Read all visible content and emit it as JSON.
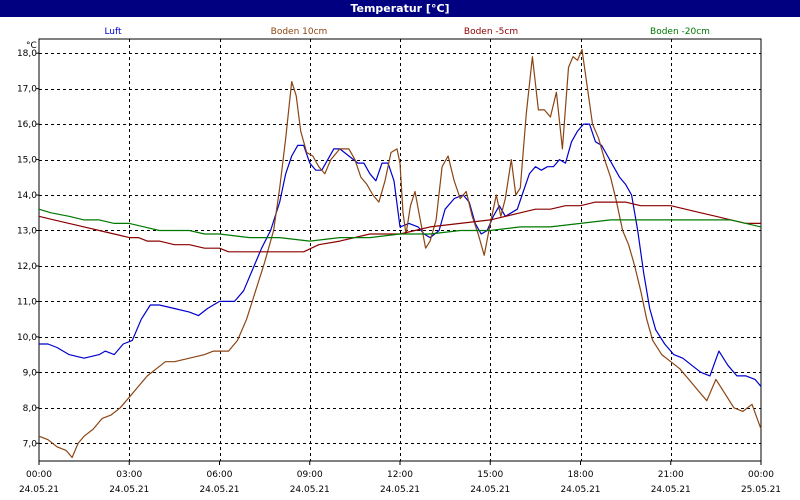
{
  "title": "Temperatur [°C]",
  "chart_data": {
    "type": "line",
    "title": "Temperatur [°C]",
    "y_unit": "°C",
    "ylim": [
      6.5,
      18.4
    ],
    "y_ticks": [
      7.0,
      8.0,
      9.0,
      10.0,
      11.0,
      12.0,
      13.0,
      14.0,
      15.0,
      16.0,
      17.0,
      18.0
    ],
    "y_tick_labels": [
      "7,0",
      "8,0",
      "9,0",
      "10,0",
      "11,0",
      "12,0",
      "13,0",
      "14,0",
      "15,0",
      "16,0",
      "17,0",
      "18,0"
    ],
    "xlim": [
      0,
      24
    ],
    "x_ticks": [
      0,
      3,
      6,
      9,
      12,
      15,
      18,
      21,
      24
    ],
    "x_tick_labels": [
      {
        "time": "00:00",
        "date": "24.05.21"
      },
      {
        "time": "03:00",
        "date": "24.05.21"
      },
      {
        "time": "06:00",
        "date": "24.05.21"
      },
      {
        "time": "09:00",
        "date": "24.05.21"
      },
      {
        "time": "12:00",
        "date": "24.05.21"
      },
      {
        "time": "15:00",
        "date": "24.05.21"
      },
      {
        "time": "18:00",
        "date": "24.05.21"
      },
      {
        "time": "21:00",
        "date": "24.05.21"
      },
      {
        "time": "00:00",
        "date": "25.05.21"
      }
    ],
    "grid": true,
    "legend_position": "top",
    "series": [
      {
        "name": "Luft",
        "color": "#0000cc",
        "points": [
          [
            0,
            9.8
          ],
          [
            0.3,
            9.8
          ],
          [
            0.6,
            9.7
          ],
          [
            1.0,
            9.5
          ],
          [
            1.5,
            9.4
          ],
          [
            2.0,
            9.5
          ],
          [
            2.2,
            9.6
          ],
          [
            2.5,
            9.5
          ],
          [
            2.8,
            9.8
          ],
          [
            3.1,
            9.9
          ],
          [
            3.4,
            10.5
          ],
          [
            3.7,
            10.9
          ],
          [
            4.0,
            10.9
          ],
          [
            4.5,
            10.8
          ],
          [
            5.0,
            10.7
          ],
          [
            5.3,
            10.6
          ],
          [
            5.6,
            10.8
          ],
          [
            6.0,
            11.0
          ],
          [
            6.5,
            11.0
          ],
          [
            6.8,
            11.3
          ],
          [
            7.1,
            11.9
          ],
          [
            7.4,
            12.5
          ],
          [
            7.7,
            13.0
          ],
          [
            8.0,
            13.8
          ],
          [
            8.2,
            14.6
          ],
          [
            8.4,
            15.1
          ],
          [
            8.6,
            15.4
          ],
          [
            8.8,
            15.4
          ],
          [
            9.0,
            14.9
          ],
          [
            9.2,
            14.7
          ],
          [
            9.4,
            14.7
          ],
          [
            9.6,
            15.0
          ],
          [
            9.8,
            15.3
          ],
          [
            10.0,
            15.3
          ],
          [
            10.3,
            15.1
          ],
          [
            10.6,
            14.9
          ],
          [
            10.8,
            14.9
          ],
          [
            11.0,
            14.6
          ],
          [
            11.2,
            14.4
          ],
          [
            11.4,
            14.9
          ],
          [
            11.6,
            14.9
          ],
          [
            11.8,
            14.4
          ],
          [
            12.0,
            13.1
          ],
          [
            12.3,
            13.2
          ],
          [
            12.6,
            13.1
          ],
          [
            12.8,
            12.9
          ],
          [
            13.0,
            12.8
          ],
          [
            13.3,
            13.0
          ],
          [
            13.5,
            13.6
          ],
          [
            13.8,
            13.9
          ],
          [
            14.1,
            14.0
          ],
          [
            14.3,
            13.8
          ],
          [
            14.5,
            13.2
          ],
          [
            14.7,
            12.9
          ],
          [
            14.9,
            13.0
          ],
          [
            15.1,
            13.4
          ],
          [
            15.3,
            13.7
          ],
          [
            15.5,
            13.4
          ],
          [
            15.7,
            13.5
          ],
          [
            15.9,
            13.6
          ],
          [
            16.1,
            14.1
          ],
          [
            16.3,
            14.6
          ],
          [
            16.5,
            14.8
          ],
          [
            16.7,
            14.7
          ],
          [
            16.9,
            14.8
          ],
          [
            17.1,
            14.8
          ],
          [
            17.3,
            15.0
          ],
          [
            17.5,
            14.9
          ],
          [
            17.7,
            15.5
          ],
          [
            17.9,
            15.8
          ],
          [
            18.1,
            16.0
          ],
          [
            18.3,
            16.0
          ],
          [
            18.5,
            15.5
          ],
          [
            18.7,
            15.4
          ],
          [
            18.9,
            15.1
          ],
          [
            19.1,
            14.8
          ],
          [
            19.3,
            14.5
          ],
          [
            19.5,
            14.3
          ],
          [
            19.7,
            14.0
          ],
          [
            19.9,
            13.0
          ],
          [
            20.1,
            11.8
          ],
          [
            20.3,
            10.8
          ],
          [
            20.5,
            10.2
          ],
          [
            20.8,
            9.8
          ],
          [
            21.1,
            9.5
          ],
          [
            21.4,
            9.4
          ],
          [
            21.7,
            9.2
          ],
          [
            22.0,
            9.0
          ],
          [
            22.3,
            8.9
          ],
          [
            22.6,
            9.6
          ],
          [
            22.9,
            9.2
          ],
          [
            23.2,
            8.9
          ],
          [
            23.5,
            8.9
          ],
          [
            23.8,
            8.8
          ],
          [
            24.0,
            8.6
          ]
        ]
      },
      {
        "name": "Boden 10cm",
        "color": "#8b4513",
        "points": [
          [
            0,
            7.2
          ],
          [
            0.3,
            7.1
          ],
          [
            0.6,
            6.9
          ],
          [
            0.9,
            6.8
          ],
          [
            1.1,
            6.6
          ],
          [
            1.3,
            7.0
          ],
          [
            1.5,
            7.2
          ],
          [
            1.8,
            7.4
          ],
          [
            2.1,
            7.7
          ],
          [
            2.4,
            7.8
          ],
          [
            2.7,
            8.0
          ],
          [
            3.0,
            8.3
          ],
          [
            3.3,
            8.6
          ],
          [
            3.6,
            8.9
          ],
          [
            3.9,
            9.1
          ],
          [
            4.2,
            9.3
          ],
          [
            4.5,
            9.3
          ],
          [
            5.0,
            9.4
          ],
          [
            5.5,
            9.5
          ],
          [
            5.8,
            9.6
          ],
          [
            6.0,
            9.6
          ],
          [
            6.3,
            9.6
          ],
          [
            6.6,
            9.9
          ],
          [
            6.9,
            10.5
          ],
          [
            7.2,
            11.3
          ],
          [
            7.5,
            12.1
          ],
          [
            7.8,
            13.0
          ],
          [
            8.0,
            14.2
          ],
          [
            8.2,
            15.6
          ],
          [
            8.4,
            17.2
          ],
          [
            8.55,
            16.8
          ],
          [
            8.7,
            15.8
          ],
          [
            8.9,
            15.2
          ],
          [
            9.1,
            15.1
          ],
          [
            9.3,
            14.8
          ],
          [
            9.5,
            14.6
          ],
          [
            9.7,
            15.0
          ],
          [
            10.0,
            15.3
          ],
          [
            10.3,
            15.3
          ],
          [
            10.5,
            15.0
          ],
          [
            10.7,
            14.5
          ],
          [
            10.9,
            14.3
          ],
          [
            11.1,
            14.0
          ],
          [
            11.3,
            13.8
          ],
          [
            11.5,
            14.4
          ],
          [
            11.7,
            15.2
          ],
          [
            11.9,
            15.3
          ],
          [
            12.0,
            14.9
          ],
          [
            12.1,
            13.5
          ],
          [
            12.2,
            12.9
          ],
          [
            12.35,
            13.7
          ],
          [
            12.5,
            14.1
          ],
          [
            12.65,
            13.4
          ],
          [
            12.85,
            12.5
          ],
          [
            13.0,
            12.7
          ],
          [
            13.2,
            13.3
          ],
          [
            13.4,
            14.8
          ],
          [
            13.6,
            15.1
          ],
          [
            13.8,
            14.4
          ],
          [
            14.0,
            13.9
          ],
          [
            14.2,
            14.1
          ],
          [
            14.4,
            13.4
          ],
          [
            14.6,
            12.9
          ],
          [
            14.8,
            12.3
          ],
          [
            15.0,
            13.2
          ],
          [
            15.2,
            14.0
          ],
          [
            15.35,
            13.4
          ],
          [
            15.5,
            13.9
          ],
          [
            15.7,
            15.0
          ],
          [
            15.85,
            14.0
          ],
          [
            16.0,
            14.2
          ],
          [
            16.2,
            16.3
          ],
          [
            16.4,
            17.9
          ],
          [
            16.6,
            16.4
          ],
          [
            16.8,
            16.4
          ],
          [
            17.0,
            16.2
          ],
          [
            17.2,
            16.9
          ],
          [
            17.4,
            15.3
          ],
          [
            17.6,
            17.6
          ],
          [
            17.75,
            17.9
          ],
          [
            17.9,
            17.8
          ],
          [
            18.05,
            18.1
          ],
          [
            18.2,
            17.2
          ],
          [
            18.4,
            16.0
          ],
          [
            18.6,
            15.6
          ],
          [
            18.8,
            15.0
          ],
          [
            19.0,
            14.5
          ],
          [
            19.2,
            13.8
          ],
          [
            19.4,
            13.0
          ],
          [
            19.6,
            12.6
          ],
          [
            19.8,
            12.0
          ],
          [
            20.0,
            11.3
          ],
          [
            20.2,
            10.5
          ],
          [
            20.4,
            9.9
          ],
          [
            20.7,
            9.5
          ],
          [
            21.0,
            9.3
          ],
          [
            21.3,
            9.1
          ],
          [
            21.6,
            8.8
          ],
          [
            21.9,
            8.5
          ],
          [
            22.2,
            8.2
          ],
          [
            22.5,
            8.8
          ],
          [
            22.8,
            8.4
          ],
          [
            23.1,
            8.0
          ],
          [
            23.4,
            7.9
          ],
          [
            23.7,
            8.1
          ],
          [
            24.0,
            7.4
          ]
        ]
      },
      {
        "name": "Boden -5cm",
        "color": "#8b0000",
        "points": [
          [
            0,
            13.4
          ],
          [
            0.5,
            13.3
          ],
          [
            1.0,
            13.2
          ],
          [
            1.5,
            13.1
          ],
          [
            2.0,
            13.0
          ],
          [
            2.5,
            12.9
          ],
          [
            3.0,
            12.8
          ],
          [
            3.3,
            12.8
          ],
          [
            3.6,
            12.7
          ],
          [
            4.0,
            12.7
          ],
          [
            4.5,
            12.6
          ],
          [
            5.0,
            12.6
          ],
          [
            5.5,
            12.5
          ],
          [
            6.0,
            12.5
          ],
          [
            6.3,
            12.4
          ],
          [
            7.0,
            12.4
          ],
          [
            8.0,
            12.4
          ],
          [
            8.8,
            12.4
          ],
          [
            9.3,
            12.6
          ],
          [
            10.0,
            12.7
          ],
          [
            11.0,
            12.9
          ],
          [
            12.0,
            12.9
          ],
          [
            12.5,
            13.0
          ],
          [
            13.0,
            13.1
          ],
          [
            14.0,
            13.2
          ],
          [
            15.0,
            13.3
          ],
          [
            16.0,
            13.5
          ],
          [
            16.5,
            13.6
          ],
          [
            17.0,
            13.6
          ],
          [
            17.5,
            13.7
          ],
          [
            18.0,
            13.7
          ],
          [
            18.5,
            13.8
          ],
          [
            19.0,
            13.8
          ],
          [
            19.5,
            13.8
          ],
          [
            20.0,
            13.7
          ],
          [
            21.0,
            13.7
          ],
          [
            22.0,
            13.5
          ],
          [
            22.5,
            13.4
          ],
          [
            23.0,
            13.3
          ],
          [
            23.5,
            13.2
          ],
          [
            24.0,
            13.2
          ]
        ]
      },
      {
        "name": "Boden -20cm",
        "color": "#007800",
        "points": [
          [
            0,
            13.6
          ],
          [
            0.4,
            13.5
          ],
          [
            1.0,
            13.4
          ],
          [
            1.5,
            13.3
          ],
          [
            2.0,
            13.3
          ],
          [
            2.5,
            13.2
          ],
          [
            3.0,
            13.2
          ],
          [
            3.5,
            13.1
          ],
          [
            4.0,
            13.0
          ],
          [
            5.0,
            13.0
          ],
          [
            5.5,
            12.9
          ],
          [
            6.0,
            12.9
          ],
          [
            7.0,
            12.8
          ],
          [
            8.0,
            12.8
          ],
          [
            9.0,
            12.7
          ],
          [
            10.0,
            12.8
          ],
          [
            11.0,
            12.8
          ],
          [
            12.0,
            12.9
          ],
          [
            13.0,
            12.9
          ],
          [
            14.0,
            13.0
          ],
          [
            15.0,
            13.0
          ],
          [
            16.0,
            13.1
          ],
          [
            17.0,
            13.1
          ],
          [
            18.0,
            13.2
          ],
          [
            19.0,
            13.3
          ],
          [
            20.0,
            13.3
          ],
          [
            21.0,
            13.3
          ],
          [
            22.0,
            13.3
          ],
          [
            23.0,
            13.3
          ],
          [
            24.0,
            13.1
          ]
        ]
      }
    ]
  }
}
